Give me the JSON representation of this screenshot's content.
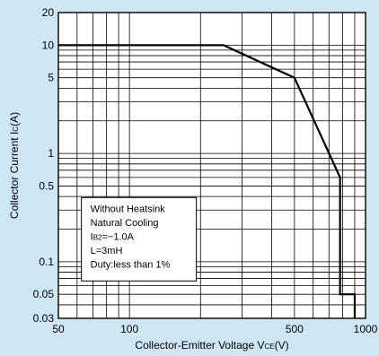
{
  "chart_data": {
    "type": "line",
    "xlabel": {
      "main": "Collector-Emitter Voltage V",
      "sub": "CE",
      "unit": "(V)"
    },
    "ylabel": {
      "main": "Collector Current I",
      "sub": "C",
      "unit": "(A)"
    },
    "x_scale": "log",
    "y_scale": "log",
    "xlim": [
      50,
      1000
    ],
    "ylim": [
      0.03,
      20
    ],
    "x_ticks": [
      50,
      100,
      500,
      1000
    ],
    "x_tick_labels": [
      "50",
      "100",
      "500",
      "1000"
    ],
    "y_ticks": [
      0.03,
      0.05,
      0.1,
      0.5,
      1,
      5,
      10,
      20
    ],
    "y_tick_labels": [
      "0.03",
      "0.05",
      "0.1",
      "0.5",
      "1",
      "5",
      "10",
      "20"
    ],
    "grid": true,
    "series": [
      {
        "x": [
          50,
          250,
          500,
          780,
          780,
          900,
          900
        ],
        "y": [
          10,
          10,
          5,
          0.6,
          0.05,
          0.05,
          0.03
        ]
      }
    ],
    "annotation_lines": [
      "Without Heatsink",
      "Natural Cooling",
      {
        "main": "I",
        "sub": "B2",
        "rest": "=−1.0A"
      },
      "L=3mH",
      "Duty:less than 1%"
    ],
    "colors": {
      "background": "#cfe6f4",
      "plot": "#ffffff",
      "line": "#000000",
      "grid": "#000000"
    }
  }
}
